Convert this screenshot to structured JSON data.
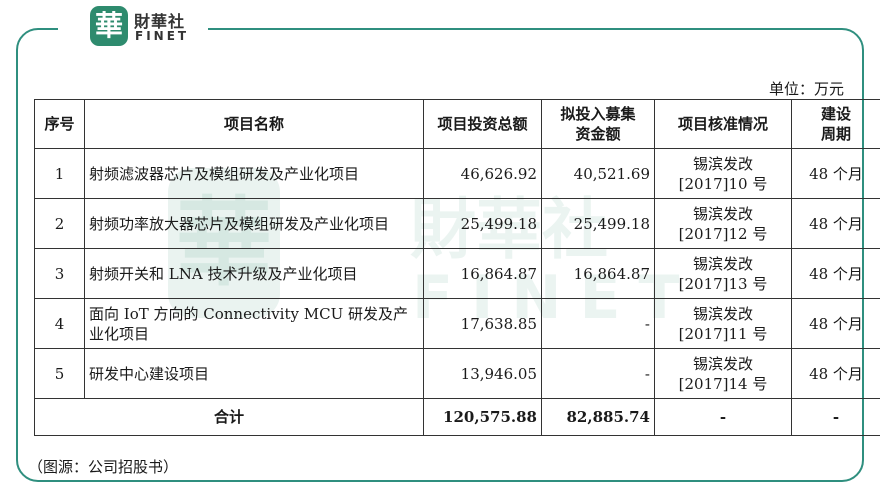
{
  "logo": {
    "seal": "華",
    "name_cn": "財華社",
    "name_en": "FINET"
  },
  "watermark": {
    "text_cn": "財華社",
    "text_en": "FINET"
  },
  "unit_label": "单位：万元",
  "table": {
    "headers": [
      "序号",
      "项目名称",
      "项目投资总额",
      "拟投入募集资金额",
      "项目核准情况",
      "建设周期"
    ],
    "rows": [
      {
        "no": "1",
        "name": "射频滤波器芯片及模组研发及产业化项目",
        "total": "46,626.92",
        "raised": "40,521.69",
        "approval": "锡滨发改[2017]10 号",
        "period": "48 个月"
      },
      {
        "no": "2",
        "name": "射频功率放大器芯片及模组研发及产业化项目",
        "total": "25,499.18",
        "raised": "25,499.18",
        "approval": "锡滨发改[2017]12 号",
        "period": "48 个月"
      },
      {
        "no": "3",
        "name": "射频开关和 LNA 技术升级及产业化项目",
        "total": "16,864.87",
        "raised": "16,864.87",
        "approval": "锡滨发改[2017]13 号",
        "period": "48 个月"
      },
      {
        "no": "4",
        "name": "面向 IoT 方向的 Connectivity MCU 研发及产业化项目",
        "total": "17,638.85",
        "raised": "-",
        "approval": "锡滨发改[2017]11 号",
        "period": "48 个月"
      },
      {
        "no": "5",
        "name": "研发中心建设项目",
        "total": "13,946.05",
        "raised": "-",
        "approval": "锡滨发改[2017]14 号",
        "period": "48 个月"
      }
    ],
    "total_row": {
      "label": "合计",
      "total": "120,575.88",
      "raised": "82,885.74",
      "approval": "-",
      "period": "-"
    }
  },
  "source_note": "（图源：公司招股书）"
}
